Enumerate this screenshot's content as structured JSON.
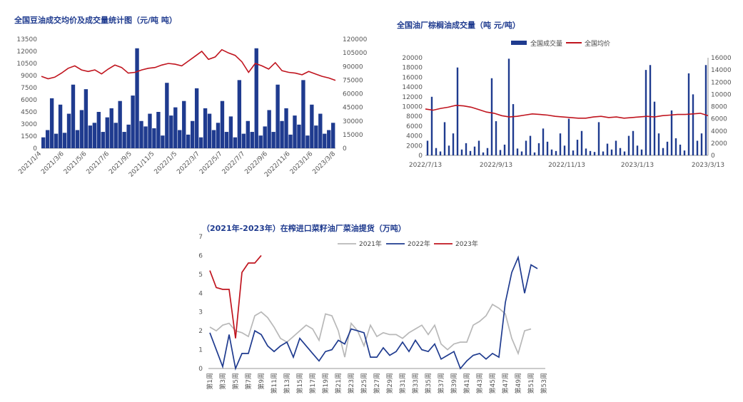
{
  "chart_data": [
    {
      "type": "bar+line",
      "title": "全国豆油成交均价及成交量统计图（元/吨 吨）",
      "x_ticks": [
        "2021/1/4",
        "2021/3/6",
        "2021/5/6",
        "2021/7/6",
        "2021/9/5",
        "2021/11/5",
        "2022/1/5",
        "2022/3/7",
        "2022/5/7",
        "2022/7/7",
        "2022/9/6",
        "2022/11/6",
        "2023/1/6",
        "2023/3/8"
      ],
      "left_axis": {
        "min": 0,
        "max": 13500,
        "ticks": [
          0,
          1500,
          3000,
          4500,
          6000,
          7500,
          9000,
          10500,
          12000,
          13500
        ]
      },
      "right_axis": {
        "min": 0,
        "max": 120000,
        "ticks": [
          0,
          15000,
          30000,
          45000,
          60000,
          75000,
          90000,
          105000,
          120000
        ]
      },
      "colors": {
        "bars": "#1f3b8f",
        "line": "#c0141e"
      },
      "series": [
        {
          "kind": "line",
          "axis": "left",
          "description": "成交均价",
          "values": [
            8900,
            8600,
            8800,
            9300,
            9900,
            10200,
            9700,
            9500,
            9700,
            9200,
            9800,
            10300,
            10000,
            9300,
            9400,
            9700,
            9900,
            10000,
            10300,
            10500,
            10400,
            10200,
            10800,
            11400,
            12000,
            11000,
            11300,
            12200,
            11800,
            11500,
            10700,
            9400,
            10500,
            10200,
            9800,
            10600,
            9600,
            9400,
            9300,
            9100,
            9500,
            9200,
            8900,
            8700,
            8400
          ]
        },
        {
          "kind": "bar",
          "axis": "right",
          "description": "成交量",
          "values": [
            12000,
            20000,
            55000,
            16000,
            48000,
            17000,
            38000,
            70000,
            20000,
            42000,
            65000,
            25000,
            28000,
            40000,
            18000,
            34000,
            44000,
            28000,
            52000,
            18000,
            26000,
            58000,
            110000,
            30000,
            24000,
            38000,
            22000,
            40000,
            14000,
            72000,
            36000,
            45000,
            20000,
            52000,
            15000,
            30000,
            66000,
            12000,
            44000,
            38000,
            20000,
            28000,
            52000,
            18000,
            35000,
            12000,
            75000,
            16000,
            30000,
            18000,
            110000,
            14000,
            24000,
            42000,
            18000,
            70000,
            30000,
            44000,
            15000,
            36000,
            26000,
            75000,
            14000,
            48000,
            25000,
            38000,
            16000,
            20000,
            28000
          ]
        }
      ]
    },
    {
      "type": "bar+line",
      "title": "全国油厂棕榈油成交量（吨 元/吨）",
      "legend": [
        "全国成交量",
        "全国均价"
      ],
      "x_ticks": [
        "2022/7/13",
        "2022/9/13",
        "2022/11/13",
        "2023/1/13",
        "2023/3/13"
      ],
      "left_axis": {
        "min": 0,
        "max": 20000,
        "ticks": [
          0,
          2000,
          4000,
          6000,
          8000,
          10000,
          12000,
          14000,
          16000,
          18000,
          20000
        ]
      },
      "right_axis": {
        "min": 0,
        "max": 16000,
        "ticks": [
          0,
          2000,
          4000,
          6000,
          8000,
          10000,
          12000,
          14000,
          16000
        ]
      },
      "colors": {
        "bars": "#1f3b8f",
        "line": "#c0141e"
      },
      "series": [
        {
          "kind": "bar",
          "axis": "left",
          "name": "全国成交量",
          "values": [
            3000,
            12000,
            1500,
            800,
            6800,
            2000,
            4500,
            18000,
            1200,
            2500,
            900,
            1800,
            3000,
            600,
            1500,
            15800,
            7000,
            1100,
            2200,
            19800,
            10500,
            1400,
            800,
            3000,
            4000,
            600,
            2500,
            5500,
            2800,
            1200,
            900,
            4500,
            2000,
            7500,
            1000,
            3200,
            5000,
            1400,
            900,
            700,
            6800,
            800,
            2400,
            1200,
            3000,
            1500,
            800,
            4000,
            5000,
            2000,
            1200,
            17500,
            18500,
            11000,
            4500,
            1500,
            2800,
            9200,
            3500,
            2200,
            1000,
            16800,
            12500,
            3000,
            4500,
            18500
          ]
        },
        {
          "kind": "line",
          "axis": "right",
          "name": "全国均价",
          "values": [
            7600,
            7400,
            7700,
            7900,
            8200,
            8100,
            7900,
            7500,
            7100,
            6900,
            6500,
            6300,
            6400,
            6600,
            6800,
            6700,
            6600,
            6400,
            6300,
            6200,
            6100,
            6100,
            6300,
            6400,
            6200,
            6300,
            6100,
            6200,
            6300,
            6400,
            6300,
            6500,
            6600,
            6700,
            6700,
            6800,
            6900,
            6500
          ]
        }
      ]
    },
    {
      "type": "line",
      "title": "（2021年-2023年）在榨进口菜籽油厂菜油提货（万吨）",
      "legend": [
        "2021年",
        "2022年",
        "2023年"
      ],
      "x_ticks": [
        "第1周",
        "第3周",
        "第5周",
        "第7周",
        "第9周",
        "第11周",
        "第13周",
        "第15周",
        "第17周",
        "第19周",
        "第21周",
        "第23周",
        "第25周",
        "第27周",
        "第29周",
        "第31周",
        "第33周",
        "第35周",
        "第37周",
        "第39周",
        "第41周",
        "第43周",
        "第45周",
        "第47周",
        "第49周",
        "第51周",
        "第53周"
      ],
      "y_axis": {
        "min": 0,
        "max": 7,
        "ticks": [
          0,
          1,
          2,
          3,
          4,
          5,
          6,
          7
        ]
      },
      "series": [
        {
          "name": "2021年",
          "color": "#b8b8b8",
          "values": [
            2.2,
            2.0,
            2.3,
            2.4,
            2.0,
            1.9,
            1.7,
            2.8,
            3.0,
            2.7,
            2.2,
            1.6,
            1.4,
            1.7,
            2.0,
            2.3,
            2.1,
            1.5,
            2.9,
            2.8,
            2.0,
            0.6,
            2.4,
            2.0,
            1.2,
            2.3,
            1.7,
            1.9,
            1.8,
            1.8,
            1.6,
            1.9,
            2.1,
            2.3,
            1.8,
            2.3,
            1.3,
            1.0,
            1.3,
            1.4,
            1.4,
            2.3,
            2.5,
            2.8,
            3.4,
            3.2,
            2.9,
            1.6,
            0.8,
            2.0,
            2.1
          ]
        },
        {
          "name": "2022年",
          "color": "#1f3b8f",
          "values": [
            1.9,
            1.0,
            0.1,
            1.8,
            0.0,
            0.8,
            0.8,
            2.0,
            1.8,
            1.2,
            0.9,
            1.2,
            1.4,
            0.6,
            1.6,
            1.2,
            0.8,
            0.4,
            0.9,
            1.0,
            1.5,
            1.3,
            2.1,
            2.0,
            1.9,
            0.6,
            0.6,
            1.1,
            0.7,
            0.9,
            1.4,
            0.9,
            1.5,
            1.0,
            0.9,
            1.3,
            0.5,
            0.7,
            0.9,
            0.0,
            0.4,
            0.7,
            0.8,
            0.5,
            0.8,
            0.6,
            3.5,
            5.1,
            5.9,
            4.0,
            5.5,
            5.3
          ]
        },
        {
          "name": "2023年",
          "color": "#c0141e",
          "values": [
            5.2,
            4.3,
            4.2,
            4.2,
            1.6,
            5.1,
            5.6,
            5.6,
            6.0
          ]
        }
      ]
    }
  ]
}
